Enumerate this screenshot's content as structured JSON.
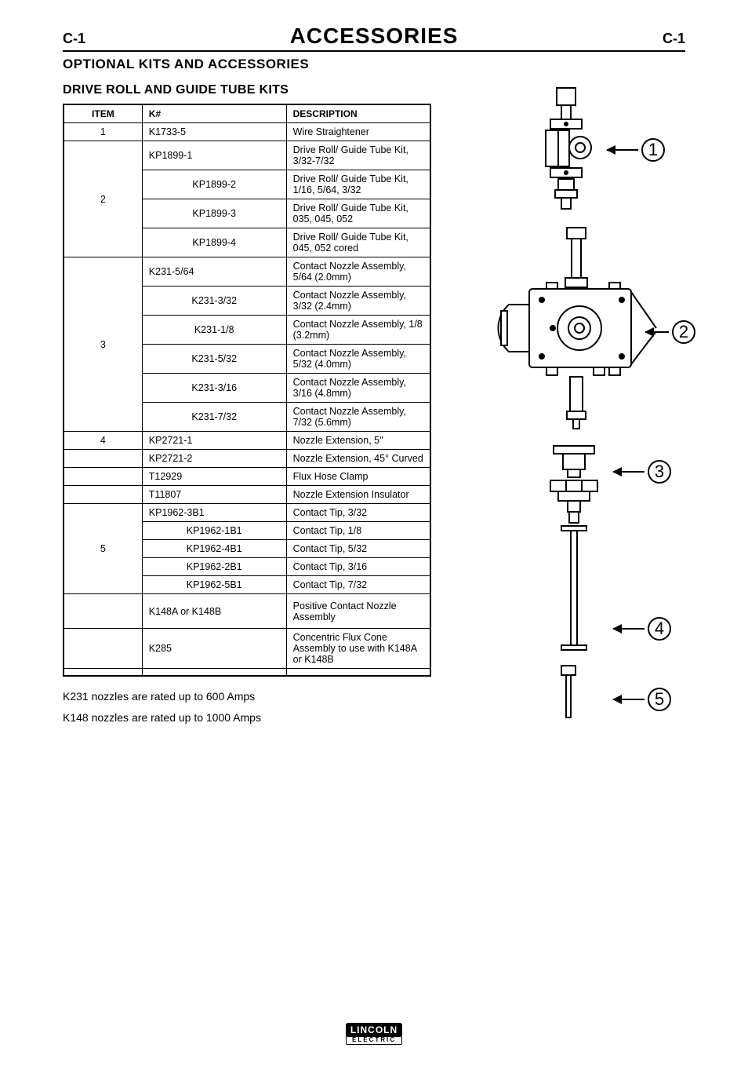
{
  "page": {
    "num_left": "C-1",
    "num_right": "C-1",
    "title": "ACCESSORIES"
  },
  "section_title": "OPTIONAL KITS AND ACCESSORIES",
  "sub_title": "DRIVE ROLL AND GUIDE TUBE KITS",
  "table": {
    "headers": [
      "ITEM",
      "K#",
      "DESCRIPTION"
    ],
    "rows": [
      {
        "item": "1",
        "k": "K1733-5",
        "desc": "Wire Straightener",
        "rowspan": 1
      },
      {
        "item": "",
        "k": "KP1899-1",
        "desc": "Drive Roll/ Guide Tube Kit, 3/32-7/32",
        "group_start": true,
        "group_span": 4,
        "group_item": "2"
      },
      {
        "item": "",
        "k": "KP1899-2",
        "desc": "Drive Roll/ Guide Tube Kit, 1/16, 5/64, 3/32"
      },
      {
        "item": "",
        "k": "KP1899-3",
        "desc": "Drive Roll/ Guide Tube Kit, 035, 045, 052"
      },
      {
        "item": "",
        "k": "KP1899-4",
        "desc": "Drive Roll/ Guide Tube Kit, 045, 052 cored"
      },
      {
        "item": "",
        "k": "K231-5/64",
        "desc": "Contact Nozzle Assembly, 5/64 (2.0mm)",
        "group_start": true,
        "group_span": 6,
        "group_item": "3"
      },
      {
        "item": "",
        "k": "K231-3/32",
        "desc": "Contact Nozzle Assembly, 3/32 (2.4mm)"
      },
      {
        "item": "",
        "k": "K231-1/8",
        "desc": "Contact Nozzle Assembly, 1/8 (3.2mm)"
      },
      {
        "item": "",
        "k": "K231-5/32",
        "desc": "Contact Nozzle Assembly, 5/32 (4.0mm)"
      },
      {
        "item": "",
        "k": "K231-3/16",
        "desc": "Contact Nozzle Assembly, 3/16 (4.8mm)"
      },
      {
        "item": "",
        "k": "K231-7/32",
        "desc": "Contact Nozzle Assembly, 7/32 (5.6mm)"
      },
      {
        "item": "4",
        "k": "KP2721-1",
        "desc": "Nozzle Extension, 5\"",
        "rowspan": 1
      },
      {
        "item": "",
        "k": "KP2721-2",
        "desc": "Nozzle Extension, 45° Curved"
      },
      {
        "item": "",
        "k": "T12929",
        "desc": "Flux Hose Clamp"
      },
      {
        "item": "",
        "k": "T11807",
        "desc": "Nozzle Extension Insulator"
      },
      {
        "item": "",
        "k": "KP1962-3B1",
        "desc": "Contact Tip, 3/32",
        "group_start": true,
        "group_span": 5,
        "group_item": "5"
      },
      {
        "item": "",
        "k": "KP1962-1B1",
        "desc": "Contact Tip, 1/8"
      },
      {
        "item": "",
        "k": "KP1962-4B1",
        "desc": "Contact Tip, 5/32"
      },
      {
        "item": "",
        "k": "KP1962-2B1",
        "desc": "Contact Tip, 3/16"
      },
      {
        "item": "",
        "k": "KP1962-5B1",
        "desc": "Contact Tip, 7/32"
      },
      {
        "item": "",
        "k": "K148A or K148B",
        "desc": "Positive Contact Nozzle Assembly",
        "tall": true
      },
      {
        "item": "",
        "k": "K285",
        "desc": "Concentric Flux Cone Assembly to use with K148A or K148B",
        "tall": true
      },
      {
        "item": "",
        "k": "",
        "desc": ""
      }
    ]
  },
  "notes": [
    "K231 nozzles are rated up to 600 Amps",
    "K148 nozzles are rated up to 1000 Amps"
  ],
  "callouts": [
    "1",
    "2",
    "3",
    "4",
    "5"
  ],
  "logo": {
    "top": "LINCOLN",
    "bottom": "ELECTRIC"
  },
  "diagram_style": {
    "stroke": "#000",
    "stroke_width": 2,
    "fill": "#fff"
  }
}
